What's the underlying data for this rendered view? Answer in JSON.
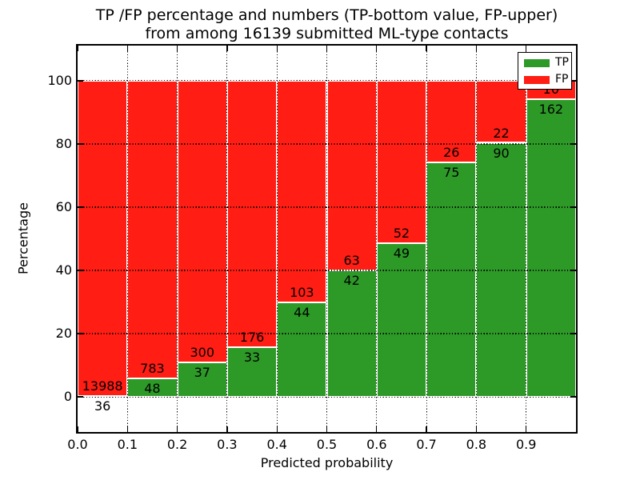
{
  "title": {
    "line1": "TP /FP percentage and numbers (TP-bottom value, FP-upper)",
    "line2": "from among 16139 submitted ML-type contacts"
  },
  "chart_data": {
    "type": "bar",
    "stacked": true,
    "normalized_to_percent": true,
    "title": "TP /FP percentage and numbers (TP-bottom value, FP-upper) from among 16139 submitted ML-type contacts",
    "xlabel": "Predicted probability",
    "ylabel": "Percentage",
    "total_contacts": 16139,
    "x_bin_starts": [
      0.0,
      0.1,
      0.2,
      0.3,
      0.4,
      0.5,
      0.6,
      0.7,
      0.8,
      0.9
    ],
    "bin_width": 0.1,
    "series": [
      {
        "name": "TP",
        "color": "#2d9a28",
        "counts": [
          36,
          48,
          37,
          33,
          44,
          42,
          49,
          75,
          90,
          162
        ]
      },
      {
        "name": "FP",
        "color": "#ff1d14",
        "counts": [
          13988,
          783,
          300,
          176,
          103,
          63,
          52,
          26,
          22,
          10
        ]
      }
    ],
    "tp_percentages": [
      0.26,
      5.78,
      10.98,
      15.79,
      29.93,
      40.0,
      48.51,
      74.26,
      80.36,
      94.19
    ],
    "xlim": [
      0,
      1.0
    ],
    "ylim": [
      -11.1,
      111.1
    ],
    "x_ticks": {
      "values": [
        0.0,
        0.1,
        0.2,
        0.3,
        0.4,
        0.5,
        0.6,
        0.7,
        0.8,
        0.9
      ],
      "labels": [
        "0.0",
        "0.1",
        "0.2",
        "0.3",
        "0.4",
        "0.5",
        "0.6",
        "0.7",
        "0.8",
        "0.9"
      ]
    },
    "y_ticks": {
      "values": [
        0,
        20,
        40,
        60,
        80,
        100
      ],
      "labels": [
        "0",
        "20",
        "40",
        "60",
        "80",
        "100"
      ]
    },
    "grid": "dotted",
    "grid_above_bars": true,
    "bar_edge_color": "#ffffff",
    "legend": {
      "position": "upper right",
      "entries": [
        {
          "label": "TP",
          "color": "#2d9a28"
        },
        {
          "label": "FP",
          "color": "#ff1d14"
        }
      ]
    }
  }
}
